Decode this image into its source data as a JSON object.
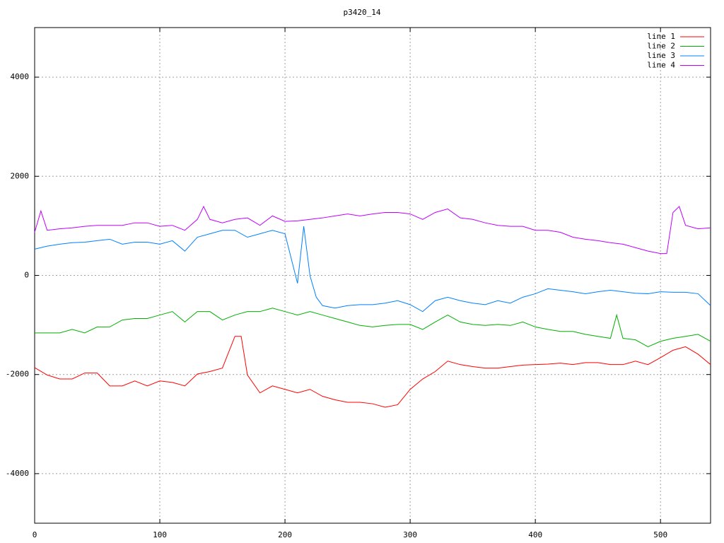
{
  "chart_data": {
    "type": "line",
    "title": "p3420_14",
    "xlim": [
      0,
      540
    ],
    "ylim": [
      -5000,
      5000
    ],
    "xticks": [
      0,
      100,
      200,
      300,
      400,
      500
    ],
    "yticks": [
      -4000,
      -2000,
      0,
      2000,
      4000
    ],
    "grid": true,
    "legend": "top-right",
    "series": [
      {
        "name": "line 1",
        "color": "#ff0000",
        "x": [
          0,
          10,
          20,
          30,
          40,
          50,
          60,
          70,
          80,
          90,
          100,
          110,
          120,
          130,
          140,
          150,
          160,
          165,
          170,
          180,
          190,
          200,
          210,
          220,
          230,
          240,
          250,
          260,
          270,
          280,
          290,
          300,
          310,
          320,
          330,
          340,
          350,
          360,
          370,
          380,
          390,
          400,
          410,
          420,
          430,
          440,
          450,
          460,
          470,
          480,
          490,
          500,
          510,
          520,
          530,
          540
        ],
        "values": [
          -1860,
          -2010,
          -2090,
          -2090,
          -1970,
          -1970,
          -2230,
          -2230,
          -2130,
          -2230,
          -2130,
          -2160,
          -2230,
          -1990,
          -1940,
          -1870,
          -1230,
          -1230,
          -2010,
          -2370,
          -2230,
          -2300,
          -2370,
          -2300,
          -2440,
          -2510,
          -2560,
          -2560,
          -2590,
          -2660,
          -2610,
          -2300,
          -2090,
          -1940,
          -1730,
          -1800,
          -1840,
          -1870,
          -1870,
          -1840,
          -1810,
          -1800,
          -1790,
          -1770,
          -1800,
          -1760,
          -1760,
          -1800,
          -1800,
          -1730,
          -1800,
          -1660,
          -1510,
          -1440,
          -1590,
          -1800
        ]
      },
      {
        "name": "line 2",
        "color": "#00b000",
        "x": [
          0,
          10,
          20,
          30,
          40,
          50,
          60,
          70,
          80,
          90,
          100,
          110,
          120,
          130,
          140,
          150,
          160,
          170,
          180,
          190,
          200,
          210,
          220,
          230,
          240,
          250,
          260,
          270,
          280,
          290,
          300,
          310,
          320,
          330,
          340,
          350,
          360,
          370,
          380,
          390,
          400,
          410,
          420,
          430,
          440,
          450,
          460,
          465,
          470,
          480,
          490,
          500,
          510,
          520,
          530,
          540
        ],
        "values": [
          -1160,
          -1160,
          -1160,
          -1090,
          -1160,
          -1040,
          -1040,
          -900,
          -870,
          -870,
          -800,
          -730,
          -940,
          -730,
          -730,
          -900,
          -800,
          -730,
          -730,
          -660,
          -730,
          -800,
          -730,
          -800,
          -870,
          -940,
          -1010,
          -1040,
          -1010,
          -990,
          -990,
          -1090,
          -940,
          -800,
          -940,
          -990,
          -1010,
          -990,
          -1010,
          -940,
          -1040,
          -1090,
          -1130,
          -1130,
          -1190,
          -1230,
          -1270,
          -800,
          -1270,
          -1300,
          -1440,
          -1330,
          -1270,
          -1230,
          -1190,
          -1330
        ]
      },
      {
        "name": "line 3",
        "color": "#0080ff",
        "x": [
          0,
          10,
          20,
          30,
          40,
          50,
          60,
          70,
          80,
          90,
          100,
          110,
          120,
          130,
          140,
          150,
          160,
          170,
          180,
          190,
          200,
          210,
          215,
          220,
          225,
          230,
          240,
          250,
          260,
          270,
          280,
          290,
          300,
          310,
          320,
          330,
          340,
          350,
          360,
          370,
          380,
          390,
          400,
          410,
          420,
          430,
          440,
          450,
          460,
          470,
          480,
          490,
          500,
          510,
          520,
          530,
          540
        ],
        "values": [
          530,
          590,
          630,
          660,
          670,
          700,
          730,
          630,
          670,
          670,
          630,
          700,
          490,
          770,
          840,
          910,
          910,
          770,
          840,
          910,
          840,
          -160,
          990,
          -10,
          -440,
          -610,
          -660,
          -610,
          -590,
          -590,
          -560,
          -510,
          -590,
          -730,
          -510,
          -440,
          -510,
          -560,
          -590,
          -510,
          -560,
          -440,
          -370,
          -270,
          -300,
          -330,
          -370,
          -330,
          -300,
          -330,
          -360,
          -370,
          -330,
          -340,
          -340,
          -370,
          -610
        ]
      },
      {
        "name": "line 4",
        "color": "#c000ff",
        "x": [
          0,
          5,
          10,
          20,
          30,
          40,
          50,
          60,
          70,
          80,
          90,
          100,
          110,
          120,
          130,
          135,
          140,
          150,
          160,
          170,
          180,
          190,
          200,
          210,
          220,
          230,
          240,
          250,
          260,
          270,
          280,
          290,
          300,
          310,
          320,
          330,
          340,
          350,
          360,
          370,
          380,
          390,
          400,
          410,
          420,
          430,
          440,
          450,
          460,
          470,
          480,
          490,
          500,
          505,
          510,
          515,
          520,
          530,
          540
        ],
        "values": [
          870,
          1300,
          910,
          940,
          960,
          990,
          1010,
          1010,
          1010,
          1060,
          1060,
          990,
          1010,
          910,
          1130,
          1390,
          1130,
          1060,
          1130,
          1160,
          1010,
          1200,
          1090,
          1100,
          1130,
          1160,
          1200,
          1240,
          1200,
          1240,
          1270,
          1270,
          1240,
          1130,
          1270,
          1340,
          1160,
          1130,
          1060,
          1010,
          990,
          990,
          910,
          910,
          870,
          770,
          730,
          700,
          660,
          630,
          560,
          490,
          440,
          440,
          1270,
          1390,
          1010,
          940,
          960
        ]
      }
    ]
  }
}
